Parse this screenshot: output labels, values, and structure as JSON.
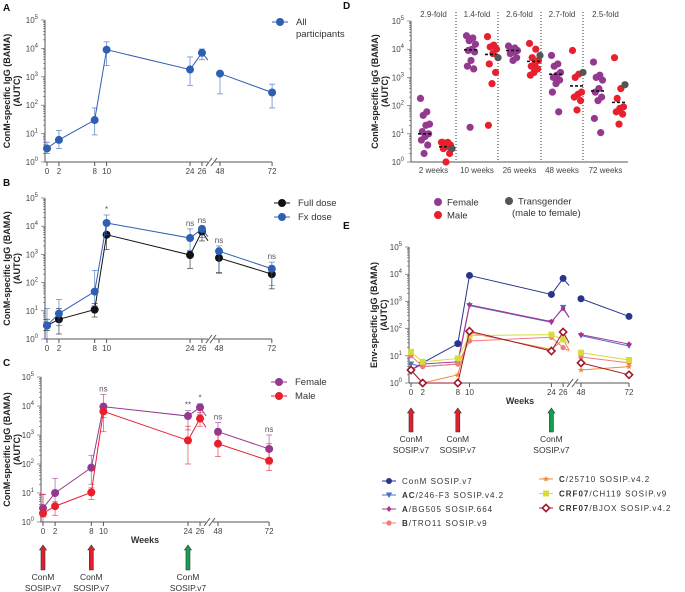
{
  "panel_labels": [
    "A",
    "B",
    "C",
    "D",
    "E"
  ],
  "chart_data": [
    {
      "id": "A",
      "type": "line",
      "yscale": "log",
      "ylim": [
        1,
        100000
      ],
      "ylabel": [
        "ConM-specific IgG (BAMA)",
        "(AUTC)"
      ],
      "xlabel": "",
      "xticks": [
        0,
        2,
        8,
        10,
        24,
        26,
        48,
        72
      ],
      "axis_break": [
        26,
        48
      ],
      "series": [
        {
          "name": "All participants",
          "color": "#2f5fb3",
          "marker": "circle",
          "values": [
            3,
            6,
            30,
            9000,
            1800,
            7000,
            1300,
            280
          ],
          "err_low": [
            2,
            3,
            9,
            2500,
            500,
            4000,
            250,
            80
          ],
          "err_high": [
            5,
            13,
            80,
            17000,
            5000,
            9500,
            1300,
            550
          ]
        }
      ],
      "annotations": []
    },
    {
      "id": "B",
      "type": "line",
      "yscale": "log",
      "ylim": [
        1,
        100000
      ],
      "ylabel": [
        "ConM-specific IgG (BAMA)",
        "(AUTC)"
      ],
      "xlabel": "",
      "xticks": [
        0,
        2,
        8,
        10,
        24,
        26,
        48,
        72
      ],
      "axis_break": [
        26,
        48
      ],
      "series": [
        {
          "name": "Full dose",
          "color": "#111111",
          "marker": "circle",
          "values": [
            3,
            5,
            11,
            5000,
            950,
            6500,
            750,
            200
          ],
          "err_low": [
            2,
            1.5,
            6,
            1500,
            320,
            3000,
            230,
            60
          ],
          "err_high": [
            5,
            12,
            18,
            6000,
            1300,
            9000,
            1100,
            280
          ]
        },
        {
          "name": "Fx dose",
          "color": "#2f5fb3",
          "marker": "circle",
          "values": [
            3,
            8,
            48,
            13000,
            3800,
            8000,
            1300,
            310
          ],
          "err_low": [
            1,
            3,
            15,
            5000,
            1400,
            4000,
            210,
            80
          ],
          "err_high": [
            12,
            25,
            270,
            25000,
            8000,
            10000,
            2000,
            530
          ]
        }
      ],
      "annotations": [
        {
          "week": 10,
          "text": "*"
        },
        {
          "week": 24,
          "text": "ns"
        },
        {
          "week": 26,
          "text": "ns"
        },
        {
          "week": 48,
          "text": "ns"
        },
        {
          "week": 72,
          "text": "ns"
        }
      ]
    },
    {
      "id": "C",
      "type": "line",
      "yscale": "log",
      "ylim": [
        1,
        100000
      ],
      "ylabel": [
        "ConM-specific IgG (BAMA)",
        "(AUTC)"
      ],
      "xlabel": "Weeks",
      "xticks": [
        0,
        2,
        8,
        10,
        24,
        26,
        48,
        72
      ],
      "axis_break": [
        26,
        48
      ],
      "series": [
        {
          "name": "Female",
          "color": "#93398f",
          "marker": "circle",
          "values": [
            3,
            10,
            75,
            9500,
            4500,
            9000,
            1300,
            330
          ],
          "err_low": [
            1,
            3,
            20,
            4000,
            1500,
            5000,
            500,
            100
          ],
          "err_high": [
            9,
            32,
            200,
            25000,
            7000,
            12000,
            2700,
            1000
          ]
        },
        {
          "name": "Male",
          "color": "#e8202e",
          "marker": "circle",
          "values": [
            2,
            3.5,
            10.5,
            6500,
            650,
            3700,
            500,
            130
          ],
          "err_low": [
            1.5,
            1.7,
            6,
            1300,
            100,
            2000,
            180,
            60
          ],
          "err_high": [
            9,
            5,
            15,
            12000,
            2000,
            6000,
            1000,
            500
          ]
        }
      ],
      "annotations": [
        {
          "week": 10,
          "text": "ns"
        },
        {
          "week": 24,
          "text": "**"
        },
        {
          "week": 26,
          "text": "*"
        },
        {
          "week": 48,
          "text": "ns"
        },
        {
          "week": 72,
          "text": "ns"
        }
      ],
      "vaccinations": [
        {
          "week": 0,
          "line1": "ConM",
          "line2": "SOSIP.v7",
          "color": "#e0202e"
        },
        {
          "week": 8,
          "line1": "ConM",
          "line2": "SOSIP.v7",
          "color": "#e0202e"
        },
        {
          "week": 24,
          "line1": "ConM",
          "line2": "SOSIP.v7",
          "color": "#12a050"
        }
      ]
    },
    {
      "id": "D",
      "type": "scatter",
      "yscale": "log",
      "ylim": [
        1,
        100000
      ],
      "ylabel": [
        "ConM-specific IgG (BAMA)",
        "(AUTC)"
      ],
      "categories": [
        "2 weeks",
        "10 weeks",
        "26 weeks",
        "48 weeks",
        "72 weeks"
      ],
      "fold_labels": [
        "2.9-fold",
        "1.4-fold",
        "2.6-fold",
        "2.7-fold",
        "2.5-fold"
      ],
      "groups": [
        {
          "name": "Female",
          "color": "#93398f",
          "values": [
            [
              180,
              60,
              45,
              22,
              20,
              12,
              10,
              8,
              6,
              4,
              2
            ],
            [
              30000,
              25000,
              20000,
              15000,
              10000,
              9000,
              8000,
              4000,
              2500,
              2000,
              17
            ],
            [
              13000,
              11000,
              10000,
              9000,
              8000,
              7000,
              5000,
              4000
            ],
            [
              6000,
              3000,
              2500,
              1500,
              1200,
              1000,
              800,
              600,
              300,
              60
            ],
            [
              3500,
              1200,
              1000,
              800,
              400,
              300,
              200,
              150,
              35,
              11
            ]
          ],
          "medians": [
            10,
            9500,
            9000,
            1300,
            330
          ]
        },
        {
          "name": "Male",
          "color": "#e8202e",
          "values": [
            [
              5,
              5,
              4.5,
              4,
              3.5,
              3,
              2,
              1,
              5
            ],
            [
              28000,
              14000,
              12000,
              10000,
              7000,
              3000,
              1500,
              600,
              20
            ],
            [
              16000,
              10000,
              5000,
              4000,
              3000,
              2500,
              2000,
              1500,
              1200
            ],
            [
              9000,
              1300,
              1000,
              300,
              250,
              200,
              150,
              70
            ],
            [
              5000,
              400,
              180,
              90,
              80,
              60,
              50,
              22
            ]
          ],
          "medians": [
            3.5,
            6500,
            3700,
            500,
            130
          ]
        },
        {
          "name": "Transgender",
          "name_line2": "(male to female)",
          "color": "#555555",
          "values": [
            [
              3
            ],
            [
              5000
            ],
            [
              6000
            ],
            [
              1500
            ],
            [
              550
            ]
          ]
        }
      ]
    },
    {
      "id": "E",
      "type": "line",
      "yscale": "log",
      "ylim": [
        1,
        100000
      ],
      "ylabel": [
        "Env-specific IgG (BAMA)",
        "(AUTC)"
      ],
      "xlabel": "Weeks",
      "xticks": [
        0,
        2,
        8,
        10,
        24,
        26,
        48,
        72
      ],
      "axis_break": [
        26,
        48
      ],
      "series": [
        {
          "name": "ConM SOSIP.v7",
          "color": "#28358c",
          "marker": "circle",
          "values": [
            3,
            5.5,
            28,
            9000,
            1800,
            7000,
            1250,
            280
          ]
        },
        {
          "name": "AC/246-F3 SOSIP.v4.2",
          "color": "#4a72c4",
          "marker": "triangle-down",
          "values": [
            5,
            4,
            5,
            700,
            170,
            600,
            55,
            23
          ]
        },
        {
          "name": "A/BG505 SOSIP.664",
          "color": "#b03090",
          "marker": "diamond-small",
          "values": [
            3,
            5,
            6,
            750,
            180,
            550,
            60,
            27
          ]
        },
        {
          "name": "B/TRO11 SOSIP.v9",
          "color": "#f07c7c",
          "marker": "circle-small",
          "values": [
            10,
            4,
            5,
            35,
            48,
            20,
            9,
            5.5
          ]
        },
        {
          "name": "C/25710 SOSIP.v4.2",
          "color": "#f08a3a",
          "marker": "star",
          "values": [
            3,
            1,
            2,
            70,
            17,
            40,
            3,
            4
          ]
        },
        {
          "name": "CRF07/CH119 SOSIP.v9",
          "color": "#d6dc3c",
          "marker": "square",
          "values": [
            14,
            6,
            8,
            55,
            60,
            40,
            13,
            7
          ]
        },
        {
          "name": "CRF07/BJOX SOSIP.v4.2",
          "color": "#a0192a",
          "marker": "diamond-open",
          "values": [
            3,
            1,
            1,
            80,
            15,
            75,
            5.5,
            2
          ]
        }
      ],
      "annotations": [],
      "vaccinations": [
        {
          "week": 0,
          "line1": "ConM",
          "line2": "SOSIP.v7",
          "color": "#e0202e"
        },
        {
          "week": 8,
          "line1": "ConM",
          "line2": "SOSIP.v7",
          "color": "#e0202e"
        },
        {
          "week": 24,
          "line1": "ConM",
          "line2": "SOSIP.v7",
          "color": "#12a050"
        }
      ]
    }
  ]
}
